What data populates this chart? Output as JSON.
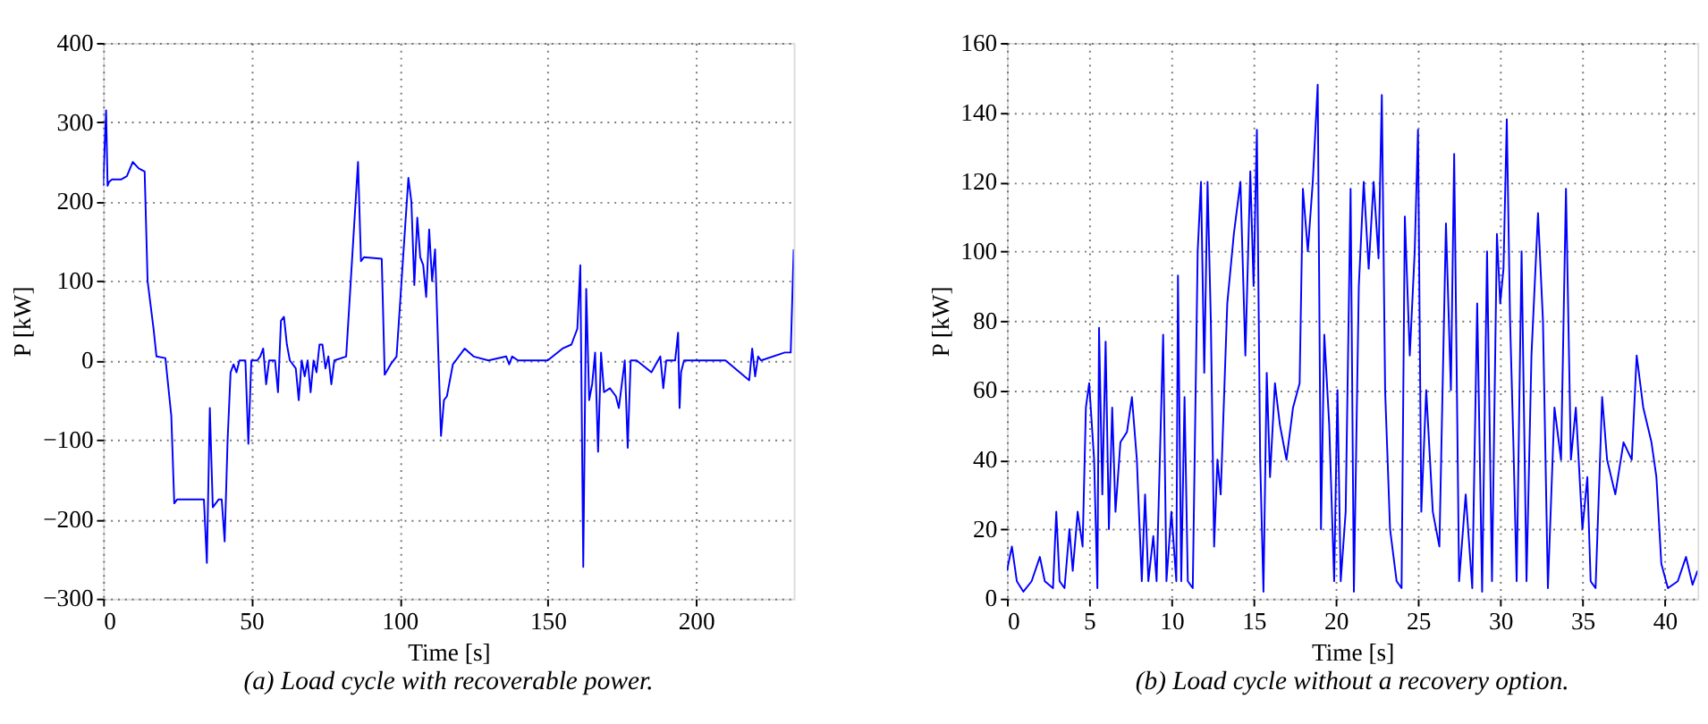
{
  "chart_data": [
    {
      "type": "line",
      "xlabel": "Time [s]",
      "ylabel": "P [kW]",
      "annotations": [
        "(a) Load cycle with recoverable power."
      ],
      "xlim": [
        0,
        233
      ],
      "xticks": [
        0,
        50,
        100,
        150,
        200
      ],
      "ylim": [
        -300,
        400
      ],
      "yticks": [
        -300,
        -200,
        -100,
        0,
        100,
        200,
        300,
        400
      ],
      "grid": true,
      "marker": "none",
      "line_style": "solid",
      "series": [
        {
          "color": "#0000ff",
          "x": [
            0,
            1,
            1.5,
            2,
            3,
            6,
            8,
            10,
            12,
            14,
            15,
            17,
            18,
            21,
            23,
            24,
            25,
            34,
            35,
            36,
            37,
            39,
            40,
            41,
            42,
            43,
            44,
            45,
            46,
            48,
            49,
            50,
            52,
            53,
            54,
            55,
            56,
            58,
            59,
            60,
            61,
            62,
            63,
            65,
            66,
            67,
            68,
            69,
            70,
            71,
            72,
            73,
            74,
            75,
            76,
            77,
            78,
            82,
            86,
            87,
            88,
            94,
            95,
            97,
            99,
            103,
            104,
            105,
            106,
            107,
            108,
            109,
            110,
            111,
            112,
            113,
            114,
            115,
            116,
            118,
            122,
            125,
            130,
            136,
            137,
            138,
            140,
            150,
            155,
            158,
            160,
            161,
            162,
            163,
            164,
            165,
            166,
            167,
            168,
            169,
            171,
            173,
            174,
            176,
            177,
            178,
            180,
            185,
            188,
            189,
            190,
            193,
            194,
            194.5,
            195,
            196,
            210,
            218,
            219,
            220,
            221,
            222,
            230,
            232,
            233
          ],
          "values": [
            220,
            315,
            220,
            225,
            228,
            228,
            232,
            250,
            242,
            238,
            100,
            40,
            5,
            3,
            -70,
            -180,
            -175,
            -175,
            -255,
            -60,
            -185,
            -175,
            -175,
            -228,
            -100,
            -15,
            -5,
            -15,
            0,
            0,
            -105,
            0,
            0,
            5,
            15,
            -30,
            0,
            0,
            -40,
            50,
            55,
            20,
            0,
            -10,
            -50,
            0,
            -20,
            0,
            -40,
            0,
            -15,
            20,
            20,
            -10,
            5,
            -30,
            0,
            5,
            250,
            125,
            130,
            128,
            -18,
            -5,
            5,
            230,
            200,
            95,
            180,
            130,
            120,
            80,
            165,
            100,
            140,
            20,
            -95,
            -50,
            -45,
            -5,
            15,
            5,
            0,
            5,
            -5,
            5,
            0,
            0,
            15,
            20,
            40,
            120,
            -260,
            90,
            -50,
            -30,
            10,
            -115,
            10,
            -40,
            -35,
            -45,
            -60,
            0,
            -110,
            0,
            0,
            -15,
            5,
            -35,
            0,
            0,
            35,
            -60,
            -15,
            0,
            0,
            -25,
            15,
            -20,
            5,
            0,
            10,
            10,
            140
          ]
        }
      ]
    },
    {
      "type": "line",
      "xlabel": "Time [s]",
      "ylabel": "P [kW]",
      "annotations": [
        "(b) Load cycle without a recovery option."
      ],
      "xlim": [
        0,
        42
      ],
      "xticks": [
        0,
        5,
        10,
        15,
        20,
        25,
        30,
        35,
        40
      ],
      "ylim": [
        0,
        160
      ],
      "yticks": [
        0,
        20,
        40,
        60,
        80,
        100,
        120,
        140,
        160
      ],
      "grid": true,
      "marker": "none",
      "line_style": "solid",
      "series": [
        {
          "color": "#0000ff",
          "x": [
            0,
            0.3,
            0.6,
            1,
            1.5,
            2,
            2.3,
            2.8,
            3,
            3.2,
            3.5,
            3.8,
            4,
            4.3,
            4.6,
            4.8,
            5,
            5.3,
            5.5,
            5.6,
            5.8,
            6,
            6.2,
            6.4,
            6.6,
            6.9,
            7.3,
            7.6,
            7.9,
            8.2,
            8.4,
            8.6,
            8.9,
            9.1,
            9.5,
            9.7,
            10,
            10.3,
            10.4,
            10.6,
            10.8,
            11,
            11.3,
            11.6,
            11.8,
            12,
            12.2,
            12.4,
            12.6,
            12.8,
            13,
            13.4,
            13.8,
            14.2,
            14.5,
            14.8,
            15,
            15.2,
            15.4,
            15.6,
            15.8,
            16,
            16.3,
            16.6,
            17,
            17.4,
            17.8,
            18,
            18.3,
            18.6,
            18.9,
            19.1,
            19.3,
            19.6,
            19.9,
            20.1,
            20.3,
            20.6,
            20.9,
            21.1,
            21.4,
            21.7,
            22,
            22.3,
            22.6,
            22.8,
            23,
            23.3,
            23.7,
            24,
            24.2,
            24.5,
            24.8,
            25,
            25.2,
            25.5,
            25.9,
            26.3,
            26.7,
            27,
            27.2,
            27.5,
            27.9,
            28.3,
            28.6,
            28.9,
            29.2,
            29.5,
            29.8,
            30,
            30.2,
            30.4,
            30.6,
            30.8,
            31,
            31.3,
            31.6,
            31.9,
            32.3,
            32.6,
            32.9,
            33.3,
            33.7,
            34,
            34.3,
            34.6,
            35,
            35.3,
            35.5,
            35.8,
            36.2,
            36.5,
            37,
            37.5,
            38,
            38.3,
            38.7,
            39.2,
            39.5,
            39.8,
            40.2,
            40.8,
            41.3,
            41.7,
            42
          ],
          "values": [
            8,
            15,
            5,
            2,
            5,
            12,
            5,
            3,
            25,
            5,
            3,
            20,
            8,
            25,
            15,
            55,
            62,
            40,
            3,
            78,
            30,
            74,
            20,
            55,
            25,
            45,
            48,
            58,
            40,
            5,
            30,
            5,
            18,
            5,
            76,
            5,
            25,
            5,
            93,
            5,
            58,
            5,
            3,
            100,
            120,
            65,
            120,
            80,
            15,
            40,
            30,
            85,
            105,
            120,
            70,
            123,
            90,
            135,
            40,
            2,
            65,
            35,
            62,
            50,
            40,
            55,
            62,
            118,
            100,
            120,
            148,
            20,
            76,
            50,
            5,
            60,
            5,
            25,
            118,
            2,
            90,
            120,
            95,
            120,
            98,
            145,
            60,
            20,
            5,
            3,
            110,
            70,
            100,
            135,
            25,
            60,
            25,
            15,
            108,
            60,
            128,
            5,
            30,
            3,
            85,
            2,
            100,
            5,
            105,
            85,
            95,
            138,
            80,
            45,
            5,
            100,
            5,
            70,
            111,
            80,
            3,
            55,
            40,
            118,
            40,
            55,
            20,
            35,
            5,
            3,
            58,
            40,
            30,
            45,
            40,
            70,
            55,
            45,
            35,
            10,
            3,
            5,
            12,
            4,
            8
          ]
        }
      ]
    }
  ]
}
